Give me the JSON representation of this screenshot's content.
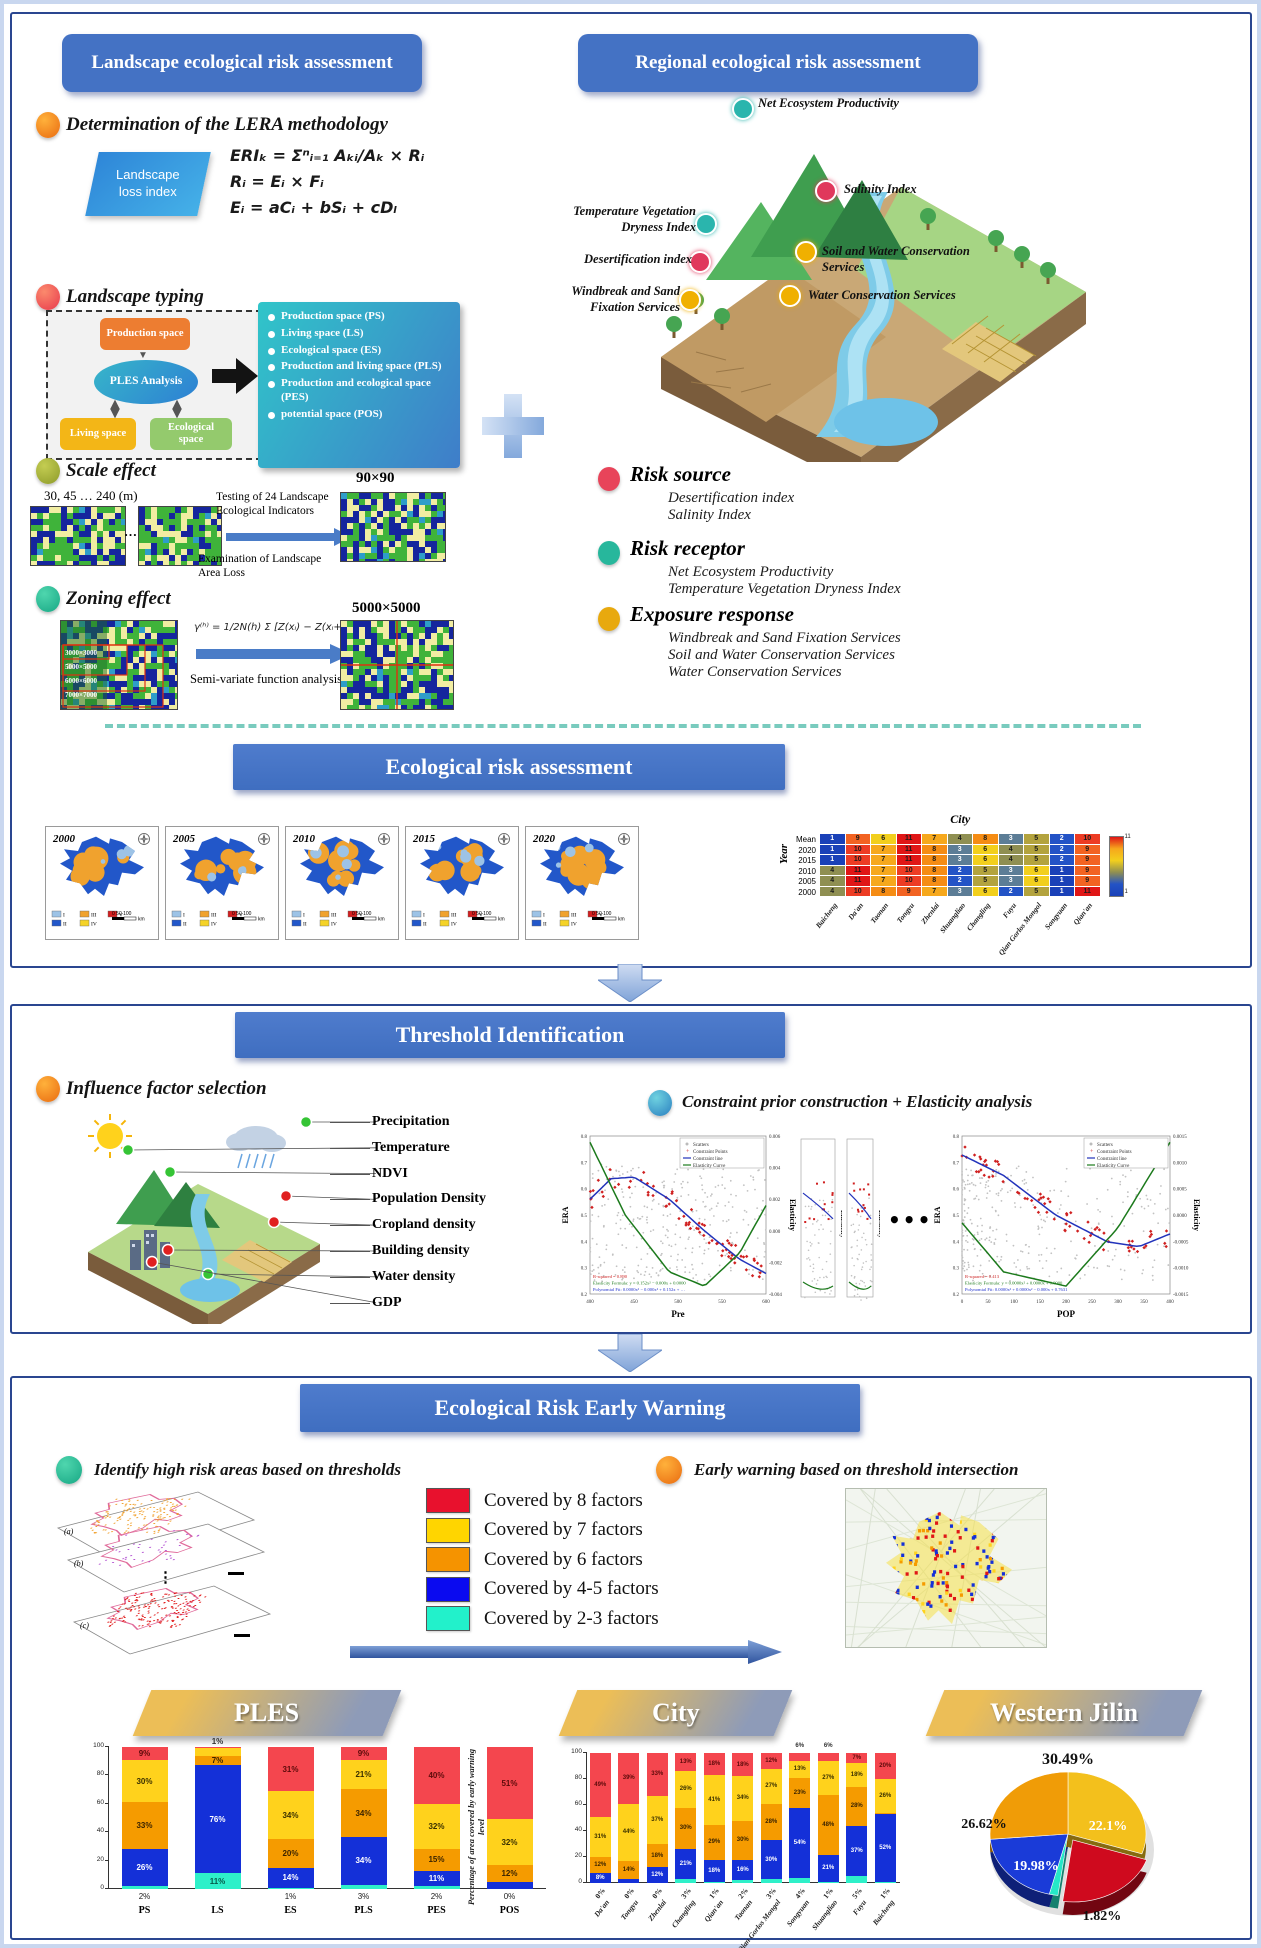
{
  "panel1": {
    "left_header": "Landscape ecological risk assessment",
    "right_header": "Regional ecological risk assessment",
    "lera": {
      "title": "Determination of the LERA methodology",
      "loss_line1": "Landscape",
      "loss_line2": "loss index",
      "formulas": [
        "ERIₖ = Σⁿᵢ₌₁ Aₖᵢ/Aₖ × Rᵢ",
        "Rᵢ = Eᵢ × Fᵢ",
        "Eᵢ = aCᵢ + bSᵢ + cDₗ"
      ]
    },
    "typing": {
      "title": "Landscape typing",
      "node_top": "Production space",
      "node_center": "PLES Analysis",
      "node_left": "Living space",
      "node_right": "Ecological space",
      "space_list": [
        "Production space (PS)",
        "Living space (LS)",
        "Ecological space (ES)",
        "Production and living space (PLS)",
        "Production and ecological space (PES)",
        "potential space (POS)"
      ]
    },
    "scale": {
      "title": "Scale effect",
      "resolutions": "30, 45   …   240 (m)",
      "arrow_top": "Testing of 24 Landscape Ecological Indicators",
      "arrow_bottom": "Examination of Landscape Area Loss",
      "result_label": "90×90"
    },
    "zoning": {
      "title": "Zoning effect",
      "zones": [
        "3000×3000",
        "5000×5000",
        "6000×6000",
        "7000×7000"
      ],
      "formula": "γ⁽ʰ⁾ = 1/2N(h) Σ [Z(xᵢ) − Z(xᵢ+h)]²",
      "arrow_label": "Semi-variate function analysis",
      "result_label": "5000×5000"
    },
    "eco_points": [
      {
        "label": "Net Ecosystem Productivity",
        "color": "#2ab5ad"
      },
      {
        "label": "Salinity Index",
        "color": "#e0385c"
      },
      {
        "label": "Temperature Vegetation Dryness Index",
        "color": "#2ab5ad"
      },
      {
        "label": "Desertification index",
        "color": "#e0385c"
      },
      {
        "label": "Soil and Water Conservation Services",
        "color": "#f0b000"
      },
      {
        "label": "Windbreak and Sand Fixation Services",
        "color": "#f0b000"
      },
      {
        "label": "Water Conservation Services",
        "color": "#f0b000"
      }
    ],
    "risk_groups": [
      {
        "title": "Risk source",
        "color": "#e8445a",
        "items": [
          "Desertification index",
          "Salinity Index"
        ]
      },
      {
        "title": "Risk receptor",
        "color": "#27b79c",
        "items": [
          "Net Ecosystem Productivity",
          "Temperature Vegetation Dryness Index"
        ]
      },
      {
        "title": "Exposure response",
        "color": "#e8a90e",
        "items": [
          "Windbreak and Sand Fixation Services",
          "Soil and Water Conservation Services",
          "Water Conservation Services"
        ]
      }
    ],
    "era_banner": "Ecological risk assessment",
    "era_maps": {
      "years": [
        "2000",
        "2005",
        "2010",
        "2015",
        "2020"
      ],
      "legend_labels": [
        "I",
        "II",
        "III",
        "IV",
        "V"
      ],
      "legend_colors": [
        "#9dc3e6",
        "#2257c9",
        "#f0a22e",
        "#f5d327",
        "#d31f1f"
      ],
      "scale_text": "0   50   100",
      "scale_unit": "km"
    },
    "heatmap": {
      "title": "City",
      "ylabel": "Year",
      "row_labels": [
        "Mean",
        "2020",
        "2015",
        "2010",
        "2005",
        "2000"
      ],
      "col_labels": [
        "Baicheng",
        "Da'an",
        "Taonan",
        "Tongyu",
        "Zhenlai",
        "Shuangliao",
        "Changling",
        "Fuyu",
        "Qian Gorlos Mongol",
        "Songyuan",
        "Qian'an"
      ],
      "values": [
        [
          1,
          9,
          6,
          11,
          7,
          4,
          8,
          3,
          5,
          2,
          10
        ],
        [
          1,
          10,
          7,
          11,
          8,
          3,
          6,
          4,
          5,
          2,
          9
        ],
        [
          1,
          10,
          7,
          11,
          8,
          3,
          6,
          4,
          5,
          2,
          9
        ],
        [
          4,
          11,
          7,
          10,
          8,
          2,
          5,
          3,
          6,
          1,
          9
        ],
        [
          4,
          11,
          7,
          10,
          8,
          2,
          5,
          3,
          6,
          1,
          9
        ],
        [
          4,
          10,
          8,
          9,
          7,
          3,
          6,
          2,
          5,
          1,
          11
        ]
      ],
      "palette": {
        "1": "#1a41b8",
        "2": "#2353c6",
        "3": "#5c7d96",
        "4": "#8f8f52",
        "5": "#b3a33e",
        "6": "#f2cf1d",
        "7": "#f6a81c",
        "8": "#f58c14",
        "9": "#f26322",
        "10": "#ed3c24",
        "11": "#e01616"
      },
      "cbar_max": "11",
      "cbar_min": "1"
    }
  },
  "panel2": {
    "banner": "Threshold Identification",
    "left_title": "Influence factor selection",
    "right_title": "Constraint prior construction + Elasticity analysis",
    "factors": [
      {
        "label": "Precipitation",
        "color": "#35c435"
      },
      {
        "label": "Temperature",
        "color": "#35c435"
      },
      {
        "label": "NDVI",
        "color": "#35c435"
      },
      {
        "label": "Population Density",
        "color": "#e02020"
      },
      {
        "label": "Cropland density",
        "color": "#e02020"
      },
      {
        "label": "Building density",
        "color": "#e02020"
      },
      {
        "label": "Water density",
        "color": "#35c435"
      },
      {
        "label": "GDP",
        "color": "#e02020"
      }
    ],
    "ellipsis": "•••",
    "elasticity_label": "Elasticity",
    "plots": [
      {
        "xlabel": "Pre",
        "ylabel": "ERA",
        "rlabel": "Elasticity",
        "xticks": [
          "400",
          "450",
          "500",
          "550",
          "600"
        ],
        "yticks": [
          "0.8",
          "0.7",
          "0.6",
          "0.5",
          "0.4",
          "0.3",
          "0.2"
        ],
        "rticks": [
          "0.006",
          "0.004",
          "0.002",
          "0.000",
          "-0.002",
          "-0.004"
        ],
        "legend": [
          "Scatters",
          "Constraint Points",
          "Constraint line",
          "Elasticity Curve"
        ],
        "annotations": [
          "R-squared = 0.890",
          "Elasticity Formula: y = 0.152x² − 0.000x + 0.0000",
          "Polynomial Fit: 0.0000x³ − 0.000x² + 0.152x + …"
        ]
      },
      {
        "xlabel": "POP",
        "ylabel": "ERA",
        "rlabel": "Elasticity",
        "xticks": [
          "0",
          "50",
          "100",
          "150",
          "200",
          "250",
          "300",
          "350",
          "400"
        ],
        "yticks": [
          "0.8",
          "0.7",
          "0.6",
          "0.5",
          "0.4",
          "0.3",
          "0.2"
        ],
        "rticks": [
          "0.0015",
          "0.0010",
          "0.0005",
          "0.0000",
          "-0.0005",
          "-0.0010",
          "-0.0015"
        ],
        "legend": [
          "Scatters",
          "Constraint Points",
          "Constraint line",
          "Elasticity Curve"
        ],
        "annotations": [
          "R-squared = 0.413",
          "Elasticity Formula: y = 0.0000x² + 0.0000x + 0.0000",
          "Polynomial Fit: 0.0000x³ + 0.0000x² − 0.000x + 0.7631"
        ]
      }
    ]
  },
  "panel3": {
    "banner": "Ecological Risk Early Warning",
    "left_title": "Identify high risk areas based on thresholds",
    "right_title": "Early warning based on threshold intersection",
    "plate_labels": [
      "(a)",
      "(b)",
      "(c)"
    ],
    "vdots": "⋮",
    "legend": [
      {
        "label": "Covered by 8 factors",
        "color": "#e8112d"
      },
      {
        "label": "Covered by 7 factors",
        "color": "#ffd500"
      },
      {
        "label": "Covered by 6 factors",
        "color": "#f59300"
      },
      {
        "label": "Covered by 4-5 factors",
        "color": "#0a0af0"
      },
      {
        "label": "Covered by 2-3 factors",
        "color": "#22f1cb"
      }
    ],
    "group_banners": [
      "PLES",
      "City",
      "Western Jilin"
    ],
    "ylabel": "Percentage of area covered by early warning level",
    "yticks": [
      "0",
      "20",
      "40",
      "60",
      "80",
      "100"
    ],
    "warning_colors": {
      "teal": "#2ef0c9",
      "blue": "#1430d8",
      "orange": "#f59b00",
      "yellow": "#ffd21c",
      "red": "#f4464e"
    },
    "ples_chart": {
      "type": "stacked-bar",
      "categories": [
        "PS",
        "LS",
        "ES",
        "PLS",
        "PES",
        "POS"
      ],
      "base_labels": [
        "2%",
        "",
        "1%",
        "3%",
        "2%",
        "0%"
      ],
      "series_order": [
        "teal",
        "blue",
        "orange",
        "yellow",
        "red"
      ],
      "stacks": [
        [
          2,
          26,
          33,
          30,
          9
        ],
        [
          11,
          76,
          7,
          5,
          1
        ],
        [
          1,
          14,
          20,
          34,
          31
        ],
        [
          3,
          34,
          34,
          21,
          9
        ],
        [
          2,
          11,
          15,
          32,
          40
        ],
        [
          0,
          5,
          12,
          32,
          51
        ]
      ]
    },
    "city_chart": {
      "type": "stacked-bar",
      "categories": [
        "Da'an",
        "Tongyu",
        "Zhenlai",
        "Changling",
        "Qian'an",
        "Taonan",
        "Qian Gorlos Mongol",
        "Songyuan",
        "Shuangliao",
        "Fuyu",
        "Baicheng"
      ],
      "base_labels": [
        "0%",
        "0%",
        "0%",
        "3%",
        "1%",
        "2%",
        "3%",
        "4%",
        "1%",
        "5%",
        "1%"
      ],
      "series_order": [
        "teal",
        "blue",
        "orange",
        "yellow",
        "red"
      ],
      "stacks": [
        [
          0,
          8,
          12,
          31,
          49
        ],
        [
          0,
          3,
          14,
          44,
          39
        ],
        [
          0,
          12,
          18,
          37,
          33
        ],
        [
          3,
          21,
          30,
          26,
          13
        ],
        [
          1,
          18,
          29,
          41,
          18
        ],
        [
          2,
          16,
          30,
          34,
          18
        ],
        [
          3,
          30,
          28,
          27,
          12
        ],
        [
          4,
          54,
          23,
          13,
          6
        ],
        [
          1,
          21,
          48,
          27,
          6
        ],
        [
          5,
          37,
          28,
          18,
          7
        ],
        [
          1,
          52,
          1,
          26,
          20
        ]
      ]
    },
    "pie_chart": {
      "type": "pie",
      "slices": [
        {
          "label": "30.49%",
          "value": 30.49,
          "color": "#f3c01c"
        },
        {
          "label": "22.1%",
          "value": 22.1,
          "color": "#cf0a1e"
        },
        {
          "label": "1.82%",
          "value": 1.82,
          "color": "#25e8c8"
        },
        {
          "label": "19.98%",
          "value": 19.98,
          "color": "#1a3bd8"
        },
        {
          "label": "26.62%",
          "value": 26.62,
          "color": "#f09c07"
        }
      ]
    }
  }
}
